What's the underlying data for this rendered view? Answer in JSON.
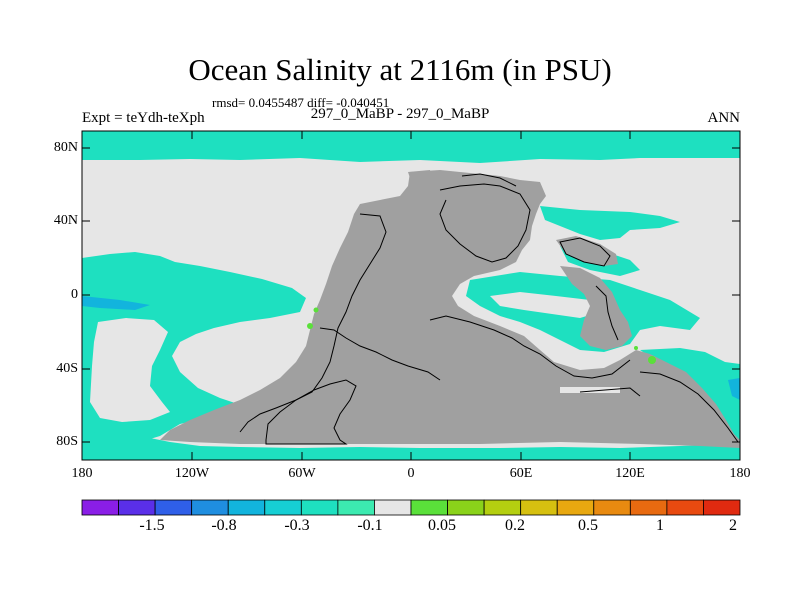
{
  "title": "Ocean Salinity at 2116m (in PSU)",
  "stats": "rmsd= 0.0455487 diff= -0.040451",
  "left_label": "Expt = teYdh-teXph",
  "center_label": "297_0_MaBP - 297_0_MaBP",
  "right_label": "ANN",
  "y_ticks": [
    "80N",
    "40N",
    "0",
    "40S",
    "80S"
  ],
  "x_ticks": [
    "180",
    "120W",
    "60W",
    "0",
    "60E",
    "120E",
    "180"
  ],
  "colorbar": {
    "colors": [
      "#8a1ee6",
      "#5a2fe8",
      "#2f5fe8",
      "#1f8ee0",
      "#12b4dd",
      "#16cfd4",
      "#1ee0c0",
      "#3ceab0",
      "#e6e6e6",
      "#5ae03a",
      "#8ad21a",
      "#b4cf10",
      "#d6c010",
      "#e8a810",
      "#e88a10",
      "#e86a10",
      "#e84a10",
      "#e02a10"
    ],
    "labels": [
      "-1.5",
      "-0.8",
      "-0.3",
      "-0.1",
      "0.05",
      "0.2",
      "0.5",
      "1",
      "2"
    ]
  },
  "map_colors": {
    "land": "#a0a0a0",
    "neutral": "#e6e6e6",
    "negative": "#1ee0c0",
    "negative_strong": "#12b4dd",
    "positive": "#5ae03a"
  }
}
